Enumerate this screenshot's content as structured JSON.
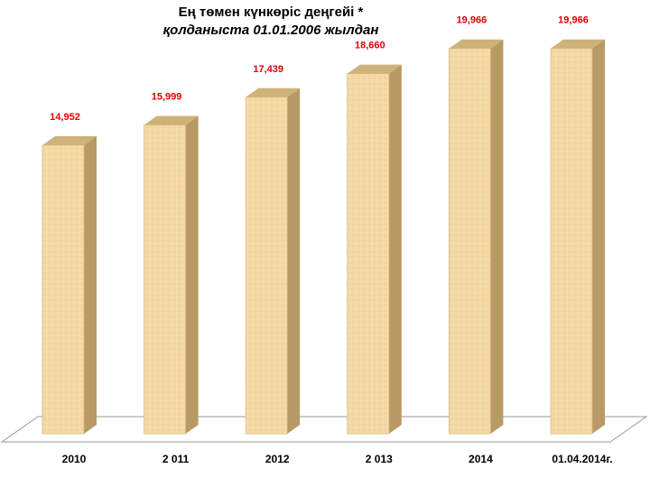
{
  "chart_data": {
    "type": "bar",
    "title": "Ең төмен күнкөріс деңгейі *",
    "subtitle": "қолданыста 01.01.2006 жылдан",
    "categories": [
      "2010",
      "2 011",
      "2012",
      "2 013",
      "2014",
      "01.04.2014г."
    ],
    "values": [
      14952,
      15999,
      17439,
      18660,
      19966,
      19966
    ],
    "data_labels": [
      "14,952",
      "15,999",
      "17,439",
      "18,660",
      "19,966",
      "19,966"
    ],
    "ylim": [
      0,
      21400
    ],
    "grid": false,
    "legend": "none",
    "colors": {
      "bar_front": "#f4d9a4",
      "bar_side": "#b89a64",
      "bar_top": "#cdb27a",
      "label": "#e00000",
      "floor": "#ffffff",
      "floor_stroke": "#9a9a9a"
    }
  }
}
